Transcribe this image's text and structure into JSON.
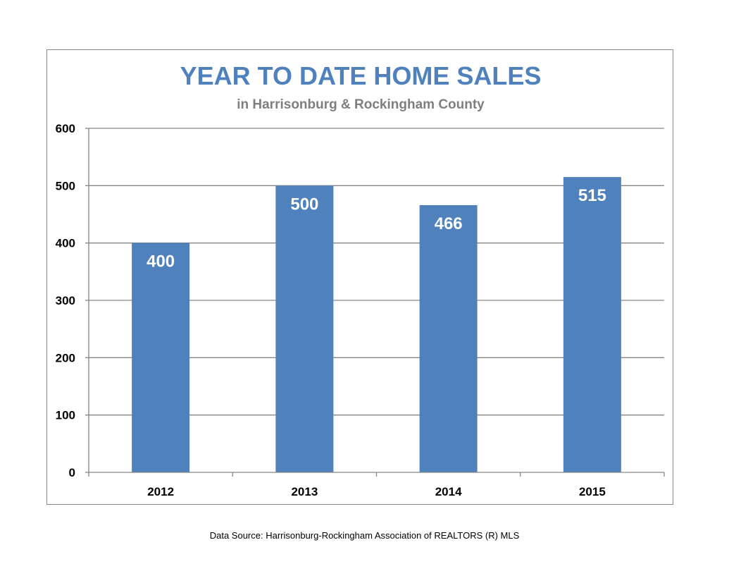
{
  "chart_data": {
    "type": "bar",
    "title": "YEAR TO DATE HOME SALES",
    "subtitle": "in Harrisonburg & Rockingham County",
    "categories": [
      "2012",
      "2013",
      "2014",
      "2015"
    ],
    "values": [
      400,
      500,
      466,
      515
    ],
    "data_labels": [
      "400",
      "500",
      "466",
      "515"
    ],
    "y_ticks": [
      "0",
      "100",
      "200",
      "300",
      "400",
      "500",
      "600"
    ],
    "ylim": [
      0,
      600
    ],
    "grid": true,
    "legend": "none",
    "bar_color": "#4f81bd"
  },
  "footer": {
    "source": "Data Source: Harrisonburg-Rockingham Association of REALTORS (R) MLS"
  }
}
